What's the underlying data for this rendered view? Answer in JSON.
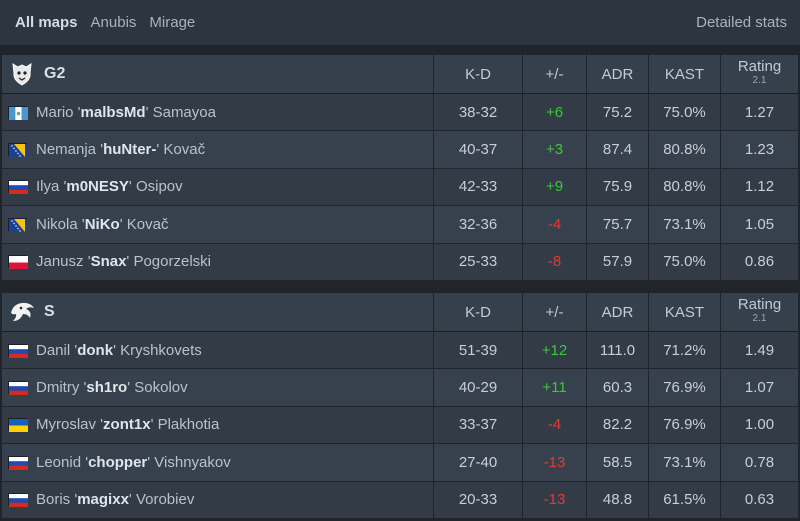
{
  "tabs": [
    "All maps",
    "Anubis",
    "Mirage"
  ],
  "detailed_stats": "Detailed stats",
  "columns": {
    "kd": "K-D",
    "pm": "+/-",
    "adr": "ADR",
    "kast": "KAST",
    "rating": "Rating",
    "rating_ver": "2.1"
  },
  "teams": [
    {
      "name": "G2",
      "players": [
        {
          "flag": "gt",
          "first": "Mario '",
          "nick": "malbsMd",
          "last": "' Samayoa",
          "kd": "38-32",
          "pm": "+6",
          "adr": "75.2",
          "kast": "75.0%",
          "rating": "1.27"
        },
        {
          "flag": "ba",
          "first": "Nemanja '",
          "nick": "huNter-",
          "last": "' Kovač",
          "kd": "40-37",
          "pm": "+3",
          "adr": "87.4",
          "kast": "80.8%",
          "rating": "1.23"
        },
        {
          "flag": "ru",
          "first": "Ilya '",
          "nick": "m0NESY",
          "last": "' Osipov",
          "kd": "42-33",
          "pm": "+9",
          "adr": "75.9",
          "kast": "80.8%",
          "rating": "1.12"
        },
        {
          "flag": "ba",
          "first": "Nikola '",
          "nick": "NiKo",
          "last": "' Kovač",
          "kd": "32-36",
          "pm": "-4",
          "adr": "75.7",
          "kast": "73.1%",
          "rating": "1.05"
        },
        {
          "flag": "pl",
          "first": "Janusz '",
          "nick": "Snax",
          "last": "' Pogorzelski",
          "kd": "25-33",
          "pm": "-8",
          "adr": "57.9",
          "kast": "75.0%",
          "rating": "0.86"
        }
      ]
    },
    {
      "name": "S",
      "players": [
        {
          "flag": "ru",
          "first": "Danil '",
          "nick": "donk",
          "last": "' Kryshkovets",
          "kd": "51-39",
          "pm": "+12",
          "adr": "111.0",
          "kast": "71.2%",
          "rating": "1.49"
        },
        {
          "flag": "ru",
          "first": "Dmitry '",
          "nick": "sh1ro",
          "last": "' Sokolov",
          "kd": "40-29",
          "pm": "+11",
          "adr": "60.3",
          "kast": "76.9%",
          "rating": "1.07"
        },
        {
          "flag": "ua",
          "first": "Myroslav '",
          "nick": "zont1x",
          "last": "' Plakhotia",
          "kd": "33-37",
          "pm": "-4",
          "adr": "82.2",
          "kast": "76.9%",
          "rating": "1.00"
        },
        {
          "flag": "ru",
          "first": "Leonid '",
          "nick": "chopper",
          "last": "' Vishnyakov",
          "kd": "27-40",
          "pm": "-13",
          "adr": "58.5",
          "kast": "73.1%",
          "rating": "0.78"
        },
        {
          "flag": "ru",
          "first": "Boris '",
          "nick": "magixx",
          "last": "' Vorobiev",
          "kd": "20-33",
          "pm": "-13",
          "adr": "48.8",
          "kast": "61.5%",
          "rating": "0.63"
        }
      ]
    }
  ],
  "colors": {
    "positive": "#3dc83a",
    "negative": "#e03a3a"
  }
}
